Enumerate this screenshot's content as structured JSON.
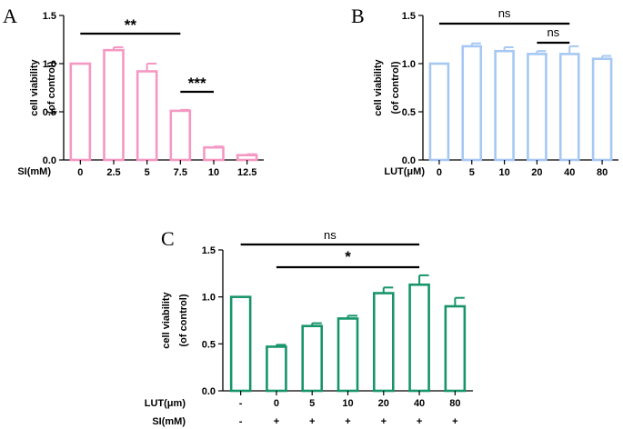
{
  "chart_data": [
    {
      "id": "A",
      "type": "bar",
      "panel_label": "A",
      "color": "#f598c3",
      "ylabel_line1": "cell viability",
      "ylabel_line2": "(of control)",
      "xlabel": "SI(mM)",
      "ylim": [
        0,
        1.5
      ],
      "yticks": [
        0.0,
        0.5,
        1.0,
        1.5
      ],
      "ytick_labels": [
        "0.0",
        "0.5",
        "1.0",
        "1.5"
      ],
      "categories": [
        "0",
        "2.5",
        "5",
        "7.5",
        "10",
        "12.5"
      ],
      "values": [
        1.0,
        1.14,
        0.92,
        0.51,
        0.13,
        0.05
      ],
      "errors": [
        0.0,
        0.03,
        0.08,
        0.01,
        0.01,
        0.01
      ],
      "significance": [
        {
          "from": 0,
          "to": 3,
          "label": "**"
        },
        {
          "from": 3,
          "to": 4,
          "label": "***"
        }
      ]
    },
    {
      "id": "B",
      "type": "bar",
      "panel_label": "B",
      "color": "#a6c8f2",
      "ylabel_line1": "cell viability",
      "ylabel_line2": "(of control)",
      "xlabel": "LUT(μM)",
      "ylim": [
        0,
        1.5
      ],
      "yticks": [
        0.0,
        0.5,
        1.0,
        1.5
      ],
      "ytick_labels": [
        "0.0",
        "0.5",
        "1.0",
        "1.5"
      ],
      "categories": [
        "0",
        "5",
        "10",
        "20",
        "40",
        "80"
      ],
      "values": [
        1.0,
        1.18,
        1.13,
        1.1,
        1.1,
        1.05
      ],
      "errors": [
        0.0,
        0.03,
        0.04,
        0.03,
        0.08,
        0.03
      ],
      "significance": [
        {
          "from": 0,
          "to": 4,
          "label": "ns"
        },
        {
          "from": 3,
          "to": 4,
          "label": "ns"
        }
      ]
    },
    {
      "id": "C",
      "type": "bar",
      "panel_label": "C",
      "color": "#17956a",
      "ylabel_line1": "cell viability",
      "ylabel_line2": "(of control)",
      "row_labels": [
        "LUT(μm)",
        "SI(mM)"
      ],
      "ylim": [
        0,
        1.5
      ],
      "yticks": [
        0.0,
        0.5,
        1.0,
        1.5
      ],
      "ytick_labels": [
        "0.0",
        "0.5",
        "1.0",
        "1.5"
      ],
      "categories": [
        "-",
        "0",
        "5",
        "10",
        "20",
        "40",
        "80"
      ],
      "categories_row2": [
        "-",
        "+",
        "+",
        "+",
        "+",
        "+",
        "+"
      ],
      "values": [
        1.0,
        0.47,
        0.69,
        0.77,
        1.04,
        1.13,
        0.9
      ],
      "errors": [
        0.0,
        0.02,
        0.03,
        0.03,
        0.06,
        0.1,
        0.09
      ],
      "significance": [
        {
          "from": 0,
          "to": 5,
          "label": "ns"
        },
        {
          "from": 1,
          "to": 5,
          "label": "*"
        }
      ]
    }
  ]
}
